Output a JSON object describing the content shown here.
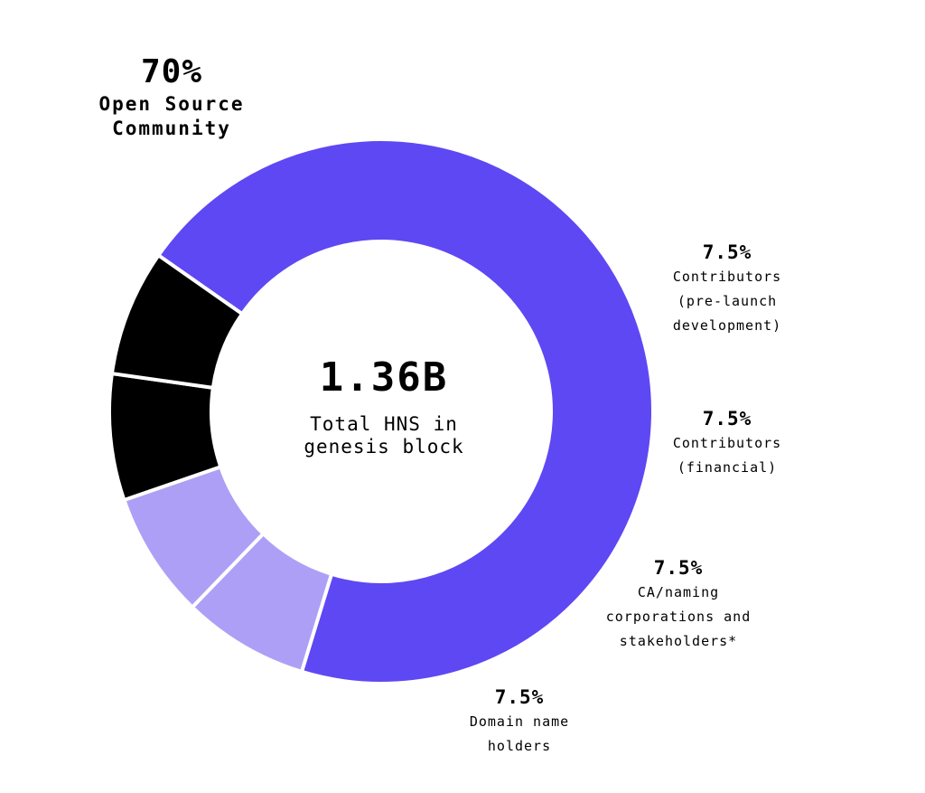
{
  "chart_data": {
    "type": "pie",
    "center": {
      "value": "1.36B",
      "label_lines": [
        "Total HNS in",
        "genesis block"
      ]
    },
    "slices": [
      {
        "percent_label": "70%",
        "value": 70,
        "label_lines": [
          "Open Source",
          "Community"
        ],
        "color": "#5e48f3"
      },
      {
        "percent_label": "7.5%",
        "value": 7.5,
        "label_lines": [
          "Contributors",
          "(pre-launch",
          "development)"
        ],
        "color": "#ae9ff6"
      },
      {
        "percent_label": "7.5%",
        "value": 7.5,
        "label_lines": [
          "Contributors",
          "(financial)"
        ],
        "color": "#ae9ff6"
      },
      {
        "percent_label": "7.5%",
        "value": 7.5,
        "label_lines": [
          "CA/naming",
          "corporations and",
          "stakeholders*"
        ],
        "color": "#000000"
      },
      {
        "percent_label": "7.5%",
        "value": 7.5,
        "label_lines": [
          "Domain name",
          "holders"
        ],
        "color": "#000000"
      }
    ]
  }
}
